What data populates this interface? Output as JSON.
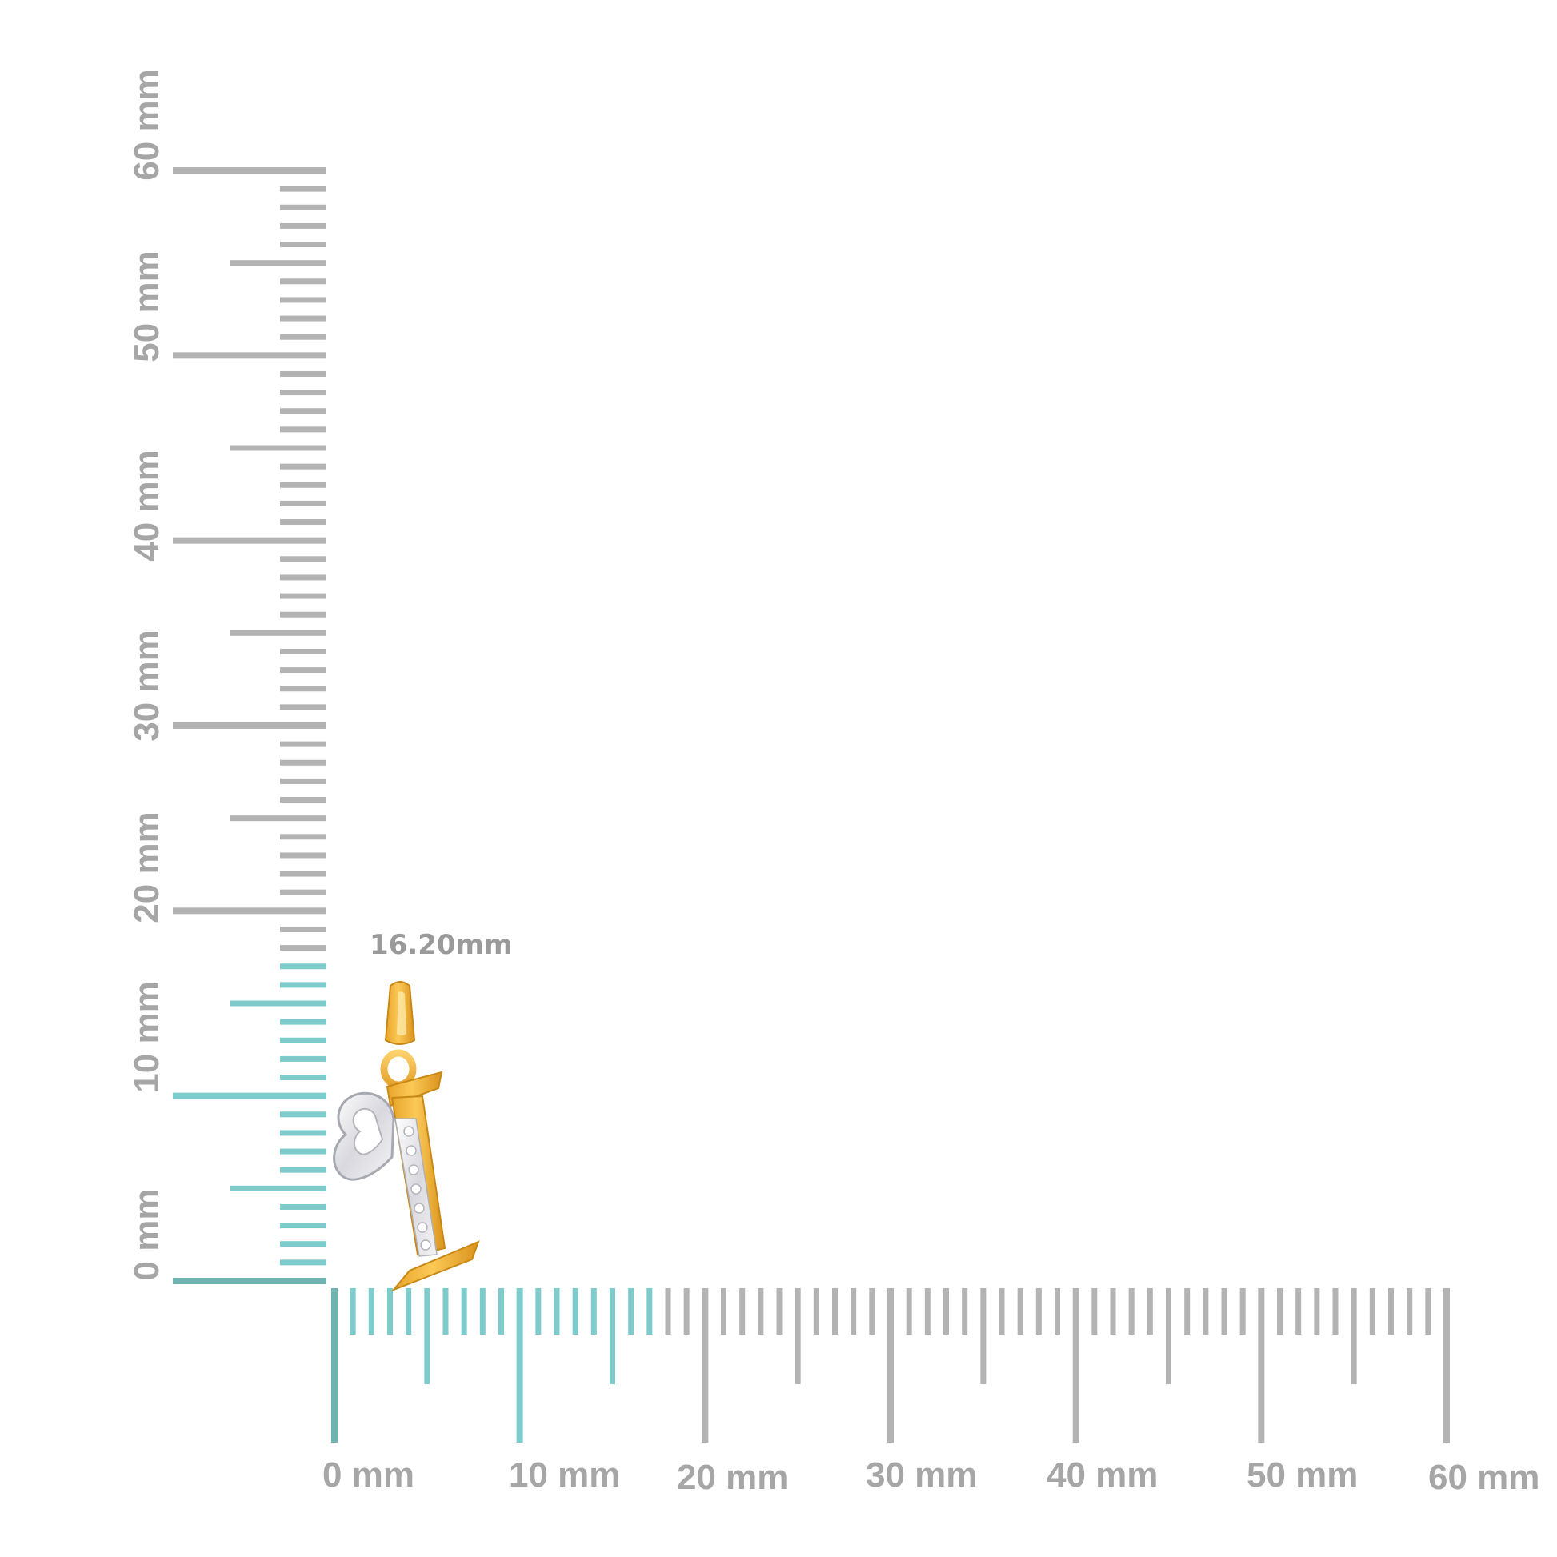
{
  "measurement": {
    "length_label": "16.20mm",
    "length_mm": 16.2
  },
  "vertical_ruler": {
    "labels": [
      "0 mm",
      "10 mm",
      "20 mm",
      "30 mm",
      "40 mm",
      "50 mm",
      "60 mm"
    ],
    "max_mm": 60
  },
  "horizontal_ruler": {
    "labels": [
      "0 mm",
      "10 mm",
      "20 mm",
      "30 mm",
      "40 mm",
      "50 mm",
      "60 mm"
    ],
    "max_mm": 60
  },
  "colors": {
    "tick_gray": "#b3b3b3",
    "tick_teal": "#7ecbcb",
    "tick_teal_dark": "#6fb3b3",
    "label_gray": "#a6a6a6",
    "gold": "#f2b73c",
    "gold_dark": "#d99a22",
    "silver": "#e9e9ec",
    "silver_dark": "#b8b8be"
  },
  "product": {
    "icon": "letter-i-heart-pendant-icon"
  }
}
